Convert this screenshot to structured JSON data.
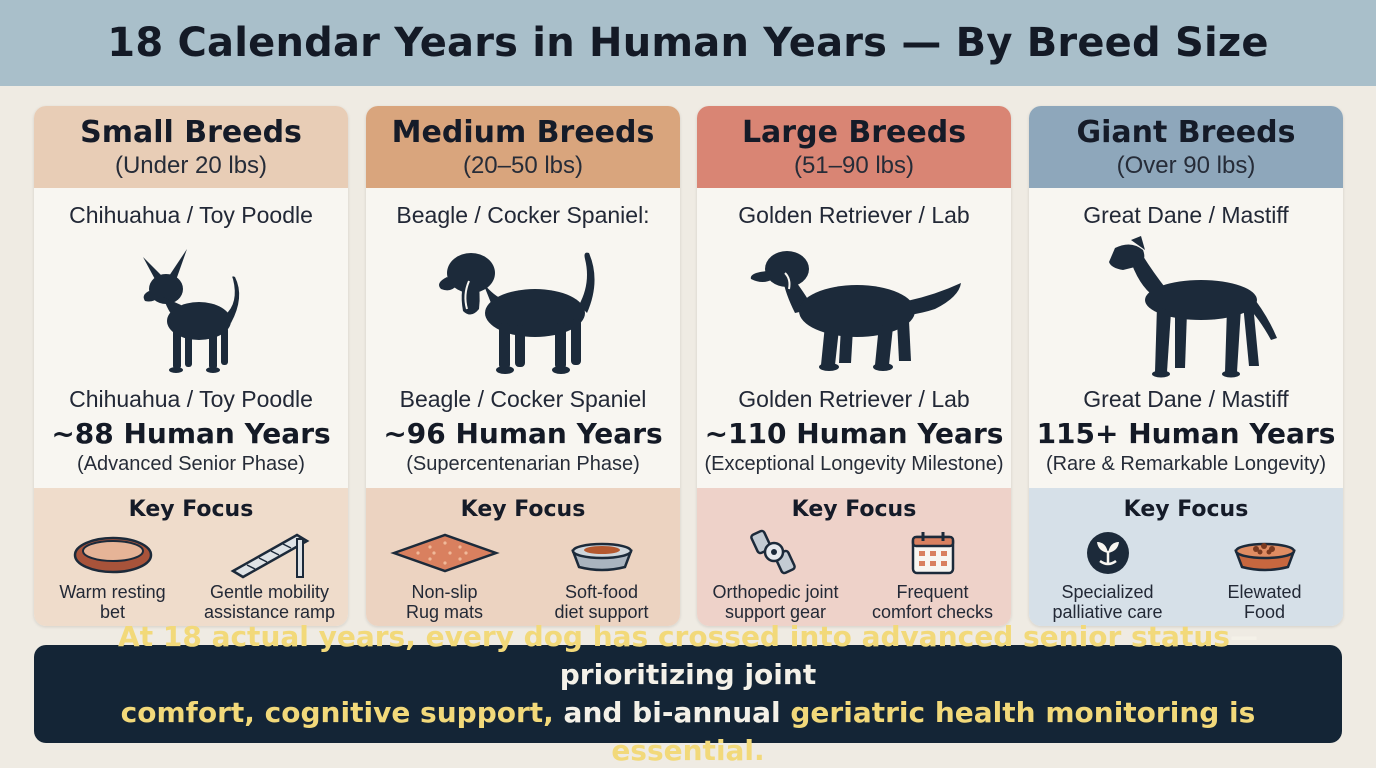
{
  "title": "18 Calendar Years in Human Years — By Breed Size",
  "colors": {
    "background": "#efebe3",
    "banner": "#a9bfca",
    "silhouette": "#1c2a3a",
    "footer_bg": "#142536",
    "footer_text": "#f2d97a"
  },
  "cards": [
    {
      "title": "Small Breeds",
      "range": "(Under 20 lbs)",
      "breeds_top": "Chihuahua / Toy Poodle",
      "breeds_bottom": "Chihuahua / Toy Poodle",
      "human_years": "~88 Human Years",
      "phase": "(Advanced Senior Phase)",
      "focus_title": "Key Focus",
      "header_color": "#e8cdb6",
      "focus_color": "#efdccb",
      "dog_icon": "chihuahua-silhouette-icon",
      "focus": [
        {
          "label_1": "Warm resting",
          "label_2": "bet",
          "icon": "dog-bed-icon"
        },
        {
          "label_1": "Gentle mobility",
          "label_2": "assistance ramp",
          "icon": "ramp-icon"
        }
      ]
    },
    {
      "title": "Medium Breeds",
      "range": "(20–50 lbs)",
      "breeds_top": "Beagle / Cocker Spaniel:",
      "breeds_bottom": "Beagle / Cocker Spaniel",
      "human_years": "~96 Human Years",
      "phase": "(Supercentenarian Phase)",
      "focus_title": "Key Focus",
      "header_color": "#d9a57d",
      "focus_color": "#ecd3c1",
      "dog_icon": "beagle-silhouette-icon",
      "focus": [
        {
          "label_1": "Non-slip",
          "label_2": "Rug mats",
          "icon": "rug-mat-icon"
        },
        {
          "label_1": "Soft-food",
          "label_2": "diet support",
          "icon": "food-bowl-icon"
        }
      ]
    },
    {
      "title": "Large Breeds",
      "range": "(51–90 lbs)",
      "breeds_top": "Golden Retriever / Lab",
      "breeds_bottom": "Golden Retriever / Lab",
      "human_years": "~110 Human Years",
      "phase": "(Exceptional Longevity Milestone)",
      "focus_title": "Key Focus",
      "header_color": "#d98574",
      "focus_color": "#eed2c9",
      "dog_icon": "retriever-silhouette-icon",
      "focus": [
        {
          "label_1": "Orthopedic joint",
          "label_2": "support gear",
          "icon": "joint-brace-icon"
        },
        {
          "label_1": "Frequent",
          "label_2": "comfort checks",
          "icon": "calendar-icon"
        }
      ]
    },
    {
      "title": "Giant Breeds",
      "range": "(Over 90 lbs)",
      "breeds_top": "Great Dane / Mastiff",
      "breeds_bottom": "Great Dane / Mastiff",
      "human_years": "115+ Human Years",
      "phase": "(Rare & Remarkable Longevity)",
      "focus_title": "Key Focus",
      "header_color": "#8ea7bb",
      "focus_color": "#d6e0e8",
      "dog_icon": "great-dane-silhouette-icon",
      "focus": [
        {
          "label_1": "Specialized",
          "label_2": "palliative care",
          "icon": "care-sprout-icon"
        },
        {
          "label_1": "Elewated",
          "label_2": "Food",
          "icon": "food-bowl-icon"
        }
      ]
    }
  ],
  "footer": {
    "part_1": "At 18 actual years, every dog has crossed into advanced senior status",
    "part_2": "—prioritizing joint",
    "part_3": "comfort, cognitive support,",
    "part_4": " and bi-annual ",
    "part_5": "geriatric health monitoring is essential."
  }
}
